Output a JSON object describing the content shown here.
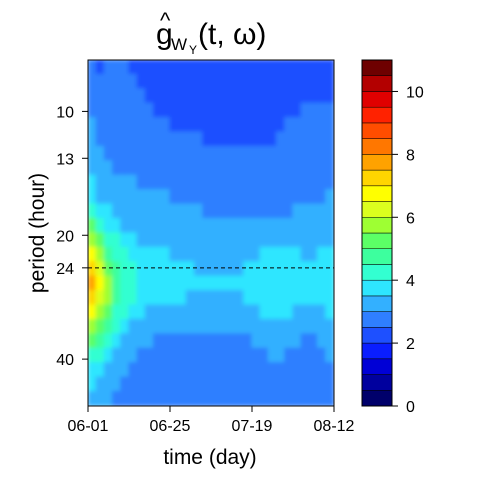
{
  "chart_data": {
    "type": "heatmap",
    "title": {
      "hat": "^",
      "main": "g",
      "sub": "W",
      "subsub": "Y",
      "args": "(t, ω)"
    },
    "xlabel": "time (day)",
    "ylabel": "period (hour)",
    "x_ticks": [
      "06-01",
      "06-25",
      "07-19",
      "08-12"
    ],
    "y_ticks": [
      "10",
      "13",
      "20",
      "24",
      "40"
    ],
    "reference_line": {
      "period": 24,
      "style": "dashed"
    },
    "colorbar": {
      "range": [
        0,
        11
      ],
      "ticks": [
        0,
        2,
        4,
        6,
        8,
        10
      ],
      "colors": [
        "#00006b",
        "#00009e",
        "#0000d6",
        "#0a1eff",
        "#1e50ff",
        "#2f7fff",
        "#33b0ff",
        "#2ee6ff",
        "#33ffd1",
        "#3dff9e",
        "#5cff66",
        "#9eff33",
        "#dcff1e",
        "#ffff00",
        "#ffd500",
        "#ffa200",
        "#ff7700",
        "#ff4d00",
        "#ff2200",
        "#e00000",
        "#b30000",
        "#6e0000"
      ]
    },
    "grid": [
      [
        2.6,
        2.4,
        2.5,
        2.6,
        2.5,
        2.4,
        2.2,
        2.3,
        2.4,
        2.4,
        2.3,
        2.2,
        2.1,
        2.1,
        2.1,
        2.2,
        2.2,
        2.2,
        2.1,
        2.1,
        2.0,
        2.0,
        2.0,
        2.0,
        2.1,
        2.2,
        2.3,
        2.3,
        2.2,
        2.3
      ],
      [
        2.7,
        2.5,
        2.6,
        2.6,
        2.6,
        2.5,
        2.4,
        2.4,
        2.4,
        2.4,
        2.3,
        2.2,
        2.2,
        2.1,
        2.1,
        2.2,
        2.2,
        2.2,
        2.2,
        2.1,
        2.0,
        2.0,
        2.0,
        2.0,
        2.1,
        2.2,
        2.3,
        2.3,
        2.3,
        2.4
      ],
      [
        2.8,
        2.6,
        2.6,
        2.6,
        2.6,
        2.5,
        2.5,
        2.4,
        2.4,
        2.4,
        2.3,
        2.3,
        2.2,
        2.2,
        2.2,
        2.2,
        2.2,
        2.2,
        2.2,
        2.2,
        2.1,
        2.1,
        2.1,
        2.1,
        2.2,
        2.2,
        2.3,
        2.3,
        2.3,
        2.4
      ],
      [
        2.9,
        2.7,
        2.6,
        2.6,
        2.6,
        2.5,
        2.5,
        2.5,
        2.4,
        2.4,
        2.4,
        2.3,
        2.3,
        2.3,
        2.3,
        2.3,
        2.2,
        2.2,
        2.2,
        2.2,
        2.2,
        2.2,
        2.2,
        2.2,
        2.3,
        2.4,
        2.6,
        2.7,
        2.6,
        2.5
      ],
      [
        3.0,
        2.8,
        2.7,
        2.6,
        2.6,
        2.6,
        2.5,
        2.5,
        2.5,
        2.5,
        2.4,
        2.4,
        2.4,
        2.3,
        2.3,
        2.3,
        2.3,
        2.3,
        2.3,
        2.3,
        2.3,
        2.3,
        2.3,
        2.4,
        2.5,
        2.6,
        2.8,
        2.9,
        2.8,
        2.6
      ],
      [
        3.1,
        2.9,
        2.8,
        2.7,
        2.7,
        2.6,
        2.7,
        2.8,
        2.7,
        2.6,
        2.5,
        2.5,
        2.5,
        2.5,
        2.4,
        2.4,
        2.4,
        2.4,
        2.4,
        2.4,
        2.4,
        2.4,
        2.4,
        2.5,
        2.6,
        2.7,
        2.9,
        2.9,
        2.8,
        2.7
      ],
      [
        3.2,
        3.0,
        2.9,
        2.8,
        2.8,
        2.8,
        2.9,
        2.9,
        2.8,
        2.7,
        2.6,
        2.6,
        2.6,
        2.6,
        2.5,
        2.5,
        2.5,
        2.5,
        2.5,
        2.5,
        2.5,
        2.5,
        2.5,
        2.6,
        2.6,
        2.7,
        2.8,
        2.8,
        2.7,
        2.7
      ],
      [
        3.3,
        3.1,
        3.0,
        2.9,
        2.9,
        2.9,
        2.9,
        2.9,
        2.8,
        2.8,
        2.7,
        2.7,
        2.7,
        2.7,
        2.6,
        2.6,
        2.6,
        2.6,
        2.6,
        2.6,
        2.6,
        2.6,
        2.6,
        2.6,
        2.7,
        2.7,
        2.8,
        2.8,
        2.8,
        2.8
      ],
      [
        3.5,
        3.2,
        3.1,
        3.0,
        3.0,
        3.0,
        2.9,
        2.9,
        2.9,
        2.9,
        2.8,
        2.8,
        2.8,
        2.8,
        2.7,
        2.7,
        2.7,
        2.7,
        2.7,
        2.7,
        2.7,
        2.7,
        2.7,
        2.7,
        2.8,
        2.8,
        2.8,
        2.8,
        2.8,
        2.9
      ],
      [
        3.8,
        3.4,
        3.2,
        3.1,
        3.1,
        3.1,
        3.0,
        3.0,
        3.0,
        3.0,
        2.9,
        2.9,
        2.9,
        2.9,
        2.8,
        2.8,
        2.8,
        2.8,
        2.8,
        2.8,
        2.8,
        2.8,
        2.8,
        2.8,
        2.8,
        2.9,
        2.9,
        2.9,
        2.9,
        3.0
      ],
      [
        4.3,
        3.8,
        3.5,
        3.3,
        3.2,
        3.2,
        3.1,
        3.1,
        3.1,
        3.1,
        3.0,
        3.0,
        3.0,
        3.0,
        2.9,
        2.9,
        2.9,
        2.9,
        2.9,
        2.9,
        2.9,
        2.9,
        2.9,
        2.9,
        2.9,
        3.0,
        3.0,
        3.0,
        3.0,
        3.1
      ],
      [
        5.0,
        4.4,
        3.9,
        3.6,
        3.4,
        3.3,
        3.3,
        3.2,
        3.2,
        3.2,
        3.1,
        3.1,
        3.1,
        3.1,
        3.0,
        3.0,
        3.0,
        3.0,
        3.0,
        3.0,
        3.0,
        3.1,
        3.1,
        3.1,
        3.1,
        3.1,
        3.1,
        3.1,
        3.1,
        3.2
      ],
      [
        5.8,
        5.0,
        4.4,
        4.0,
        3.7,
        3.5,
        3.4,
        3.4,
        3.4,
        3.3,
        3.3,
        3.2,
        3.2,
        3.2,
        3.2,
        3.1,
        3.1,
        3.1,
        3.1,
        3.1,
        3.2,
        3.3,
        3.4,
        3.4,
        3.4,
        3.3,
        3.3,
        3.3,
        3.3,
        3.4
      ],
      [
        6.5,
        5.6,
        4.9,
        4.4,
        4.0,
        3.8,
        3.6,
        3.6,
        3.5,
        3.5,
        3.4,
        3.4,
        3.4,
        3.3,
        3.3,
        3.3,
        3.3,
        3.3,
        3.3,
        3.3,
        3.4,
        3.5,
        3.6,
        3.7,
        3.6,
        3.5,
        3.4,
        3.4,
        3.5,
        3.6
      ],
      [
        7.2,
        6.2,
        5.3,
        4.7,
        4.3,
        4.0,
        3.8,
        3.7,
        3.6,
        3.6,
        3.5,
        3.5,
        3.5,
        3.4,
        3.4,
        3.4,
        3.4,
        3.4,
        3.4,
        3.5,
        3.6,
        3.7,
        3.8,
        3.8,
        3.7,
        3.6,
        3.5,
        3.5,
        3.6,
        3.8
      ],
      [
        7.8,
        6.6,
        5.6,
        4.9,
        4.4,
        4.1,
        3.9,
        3.8,
        3.7,
        3.7,
        3.6,
        3.6,
        3.5,
        3.5,
        3.5,
        3.5,
        3.5,
        3.5,
        3.5,
        3.6,
        3.7,
        3.8,
        3.9,
        3.9,
        3.8,
        3.7,
        3.6,
        3.6,
        3.7,
        3.9
      ],
      [
        7.5,
        6.4,
        5.5,
        4.8,
        4.3,
        4.0,
        3.8,
        3.7,
        3.6,
        3.6,
        3.5,
        3.5,
        3.4,
        3.4,
        3.4,
        3.4,
        3.4,
        3.4,
        3.4,
        3.5,
        3.6,
        3.7,
        3.8,
        3.8,
        3.7,
        3.6,
        3.5,
        3.5,
        3.6,
        3.8
      ],
      [
        6.8,
        5.8,
        5.0,
        4.4,
        4.0,
        3.7,
        3.5,
        3.4,
        3.3,
        3.3,
        3.2,
        3.2,
        3.2,
        3.2,
        3.2,
        3.2,
        3.2,
        3.2,
        3.2,
        3.3,
        3.4,
        3.5,
        3.6,
        3.6,
        3.5,
        3.4,
        3.3,
        3.3,
        3.4,
        3.5
      ],
      [
        5.9,
        5.1,
        4.5,
        4.0,
        3.6,
        3.4,
        3.3,
        3.2,
        3.1,
        3.1,
        3.0,
        3.0,
        3.0,
        3.0,
        3.0,
        3.0,
        3.0,
        3.0,
        3.0,
        3.1,
        3.2,
        3.3,
        3.4,
        3.4,
        3.3,
        3.2,
        3.1,
        3.1,
        3.2,
        3.3
      ],
      [
        5.0,
        4.5,
        4.0,
        3.6,
        3.3,
        3.1,
        3.0,
        3.0,
        2.9,
        2.9,
        2.9,
        2.8,
        2.8,
        2.8,
        2.8,
        2.8,
        2.8,
        2.8,
        2.8,
        2.9,
        3.0,
        3.1,
        3.2,
        3.2,
        3.1,
        3.0,
        2.9,
        2.9,
        3.0,
        3.1
      ],
      [
        4.4,
        4.0,
        3.7,
        3.4,
        3.2,
        3.0,
        2.9,
        2.8,
        2.8,
        2.7,
        2.7,
        2.7,
        2.7,
        2.7,
        2.7,
        2.7,
        2.7,
        2.7,
        2.7,
        2.7,
        2.8,
        2.9,
        3.0,
        3.0,
        2.9,
        2.9,
        2.8,
        2.8,
        2.9,
        3.0
      ],
      [
        3.9,
        3.6,
        3.4,
        3.2,
        3.0,
        2.9,
        2.8,
        2.7,
        2.7,
        2.6,
        2.6,
        2.6,
        2.6,
        2.6,
        2.6,
        2.6,
        2.6,
        2.6,
        2.6,
        2.6,
        2.7,
        2.7,
        2.8,
        2.8,
        2.8,
        2.7,
        2.7,
        2.7,
        2.8,
        2.9
      ],
      [
        3.6,
        3.4,
        3.2,
        3.0,
        2.9,
        2.8,
        2.7,
        2.6,
        2.6,
        2.6,
        2.5,
        2.5,
        2.5,
        2.5,
        2.5,
        2.5,
        2.5,
        2.5,
        2.5,
        2.5,
        2.6,
        2.6,
        2.7,
        2.7,
        2.7,
        2.7,
        2.7,
        2.7,
        2.7,
        2.8
      ],
      [
        3.4,
        3.2,
        3.0,
        2.9,
        2.8,
        2.7,
        2.6,
        2.6,
        2.5,
        2.5,
        2.5,
        2.5,
        2.5,
        2.5,
        2.5,
        2.5,
        2.5,
        2.5,
        2.5,
        2.5,
        2.5,
        2.6,
        2.6,
        2.6,
        2.6,
        2.6,
        2.6,
        2.6,
        2.7,
        2.8
      ]
    ]
  }
}
